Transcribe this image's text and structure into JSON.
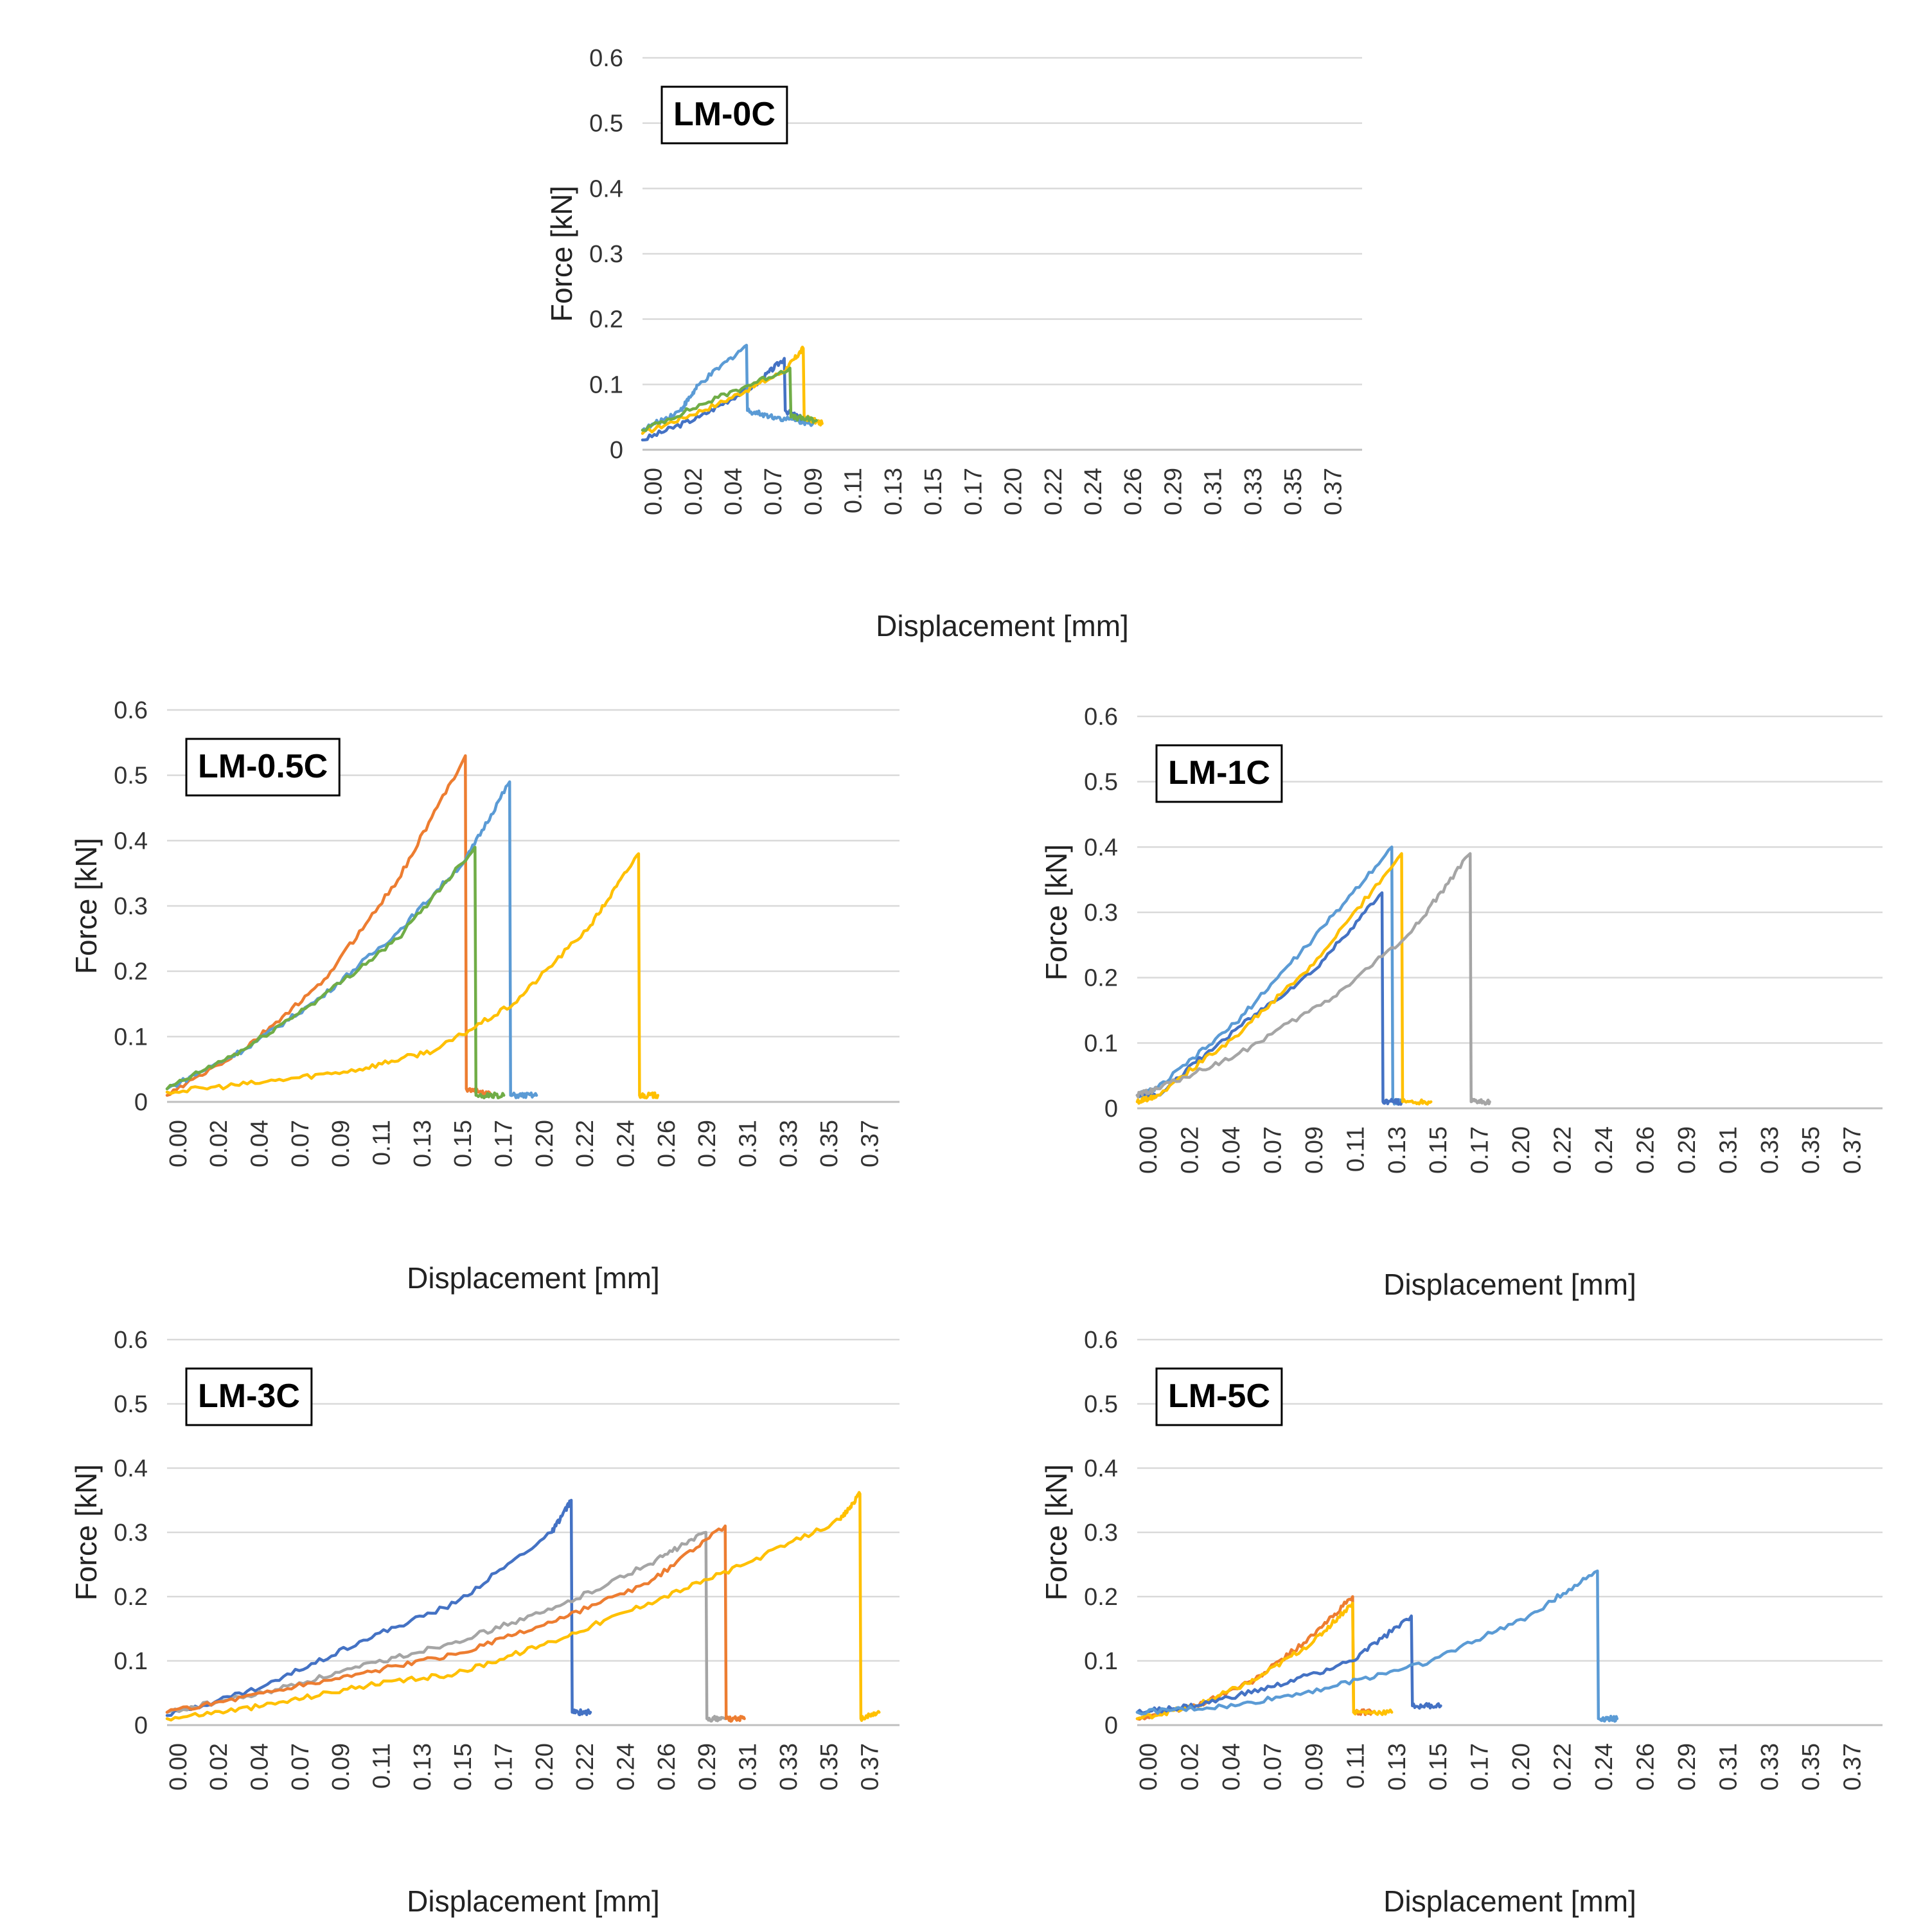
{
  "colors": {
    "blue": "#4472C4",
    "orange": "#ED7D31",
    "gray": "#A5A5A5",
    "yellow": "#FFC000",
    "light_blue": "#5B9BD5",
    "green": "#70AD47"
  },
  "x_tick_labels": [
    "0.00",
    "0.02",
    "0.04",
    "0.07",
    "0.09",
    "0.11",
    "0.13",
    "0.15",
    "0.17",
    "0.20",
    "0.22",
    "0.24",
    "0.26",
    "0.29",
    "0.31",
    "0.33",
    "0.35",
    "0.37"
  ],
  "y_tick_labels": [
    "0",
    "0.1",
    "0.2",
    "0.3",
    "0.4",
    "0.5",
    "0.6"
  ],
  "chart_data": [
    {
      "type": "line",
      "panel": "LM-0C",
      "title": "LM-0C",
      "xlabel": "Displacement [mm]",
      "ylabel": "Force [kN]",
      "xlim": [
        0,
        0.37
      ],
      "ylim": [
        0,
        0.6
      ],
      "grid": true,
      "series": [
        {
          "name": "LM-0C blue",
          "color": "#4472C4",
          "x": [
            0,
            0.03,
            0.06,
            0.075,
            0.0755,
            0.09
          ],
          "y": [
            0.015,
            0.05,
            0.1,
            0.14,
            0.06,
            0.04
          ]
        },
        {
          "name": "LM-0C light blue",
          "color": "#5B9BD5",
          "x": [
            0,
            0.02,
            0.03,
            0.055,
            0.0555,
            0.07,
            0.09
          ],
          "y": [
            0.03,
            0.06,
            0.1,
            0.16,
            0.06,
            0.05,
            0.04
          ]
        },
        {
          "name": "LM-0C yellow",
          "color": "#FFC000",
          "x": [
            0,
            0.04,
            0.075,
            0.085,
            0.0855,
            0.095
          ],
          "y": [
            0.025,
            0.07,
            0.12,
            0.155,
            0.05,
            0.04
          ]
        },
        {
          "name": "LM-0C green",
          "color": "#70AD47",
          "x": [
            0,
            0.04,
            0.078,
            0.0785,
            0.092
          ],
          "y": [
            0.03,
            0.08,
            0.125,
            0.05,
            0.045
          ]
        }
      ]
    },
    {
      "type": "line",
      "panel": "LM-0.5C",
      "title": "LM-0.5C",
      "xlabel": "Displacement [mm]",
      "ylabel": "Force [kN]",
      "xlim": [
        0,
        0.37
      ],
      "ylim": [
        0,
        0.6
      ],
      "grid": true,
      "series": [
        {
          "name": "LM-0.5C orange",
          "color": "#ED7D31",
          "x": [
            0,
            0.04,
            0.08,
            0.12,
            0.155,
            0.1555,
            0.17
          ],
          "y": [
            0.01,
            0.08,
            0.18,
            0.34,
            0.53,
            0.02,
            0.01
          ]
        },
        {
          "name": "LM-0.5C light blue",
          "color": "#5B9BD5",
          "x": [
            0,
            0.04,
            0.08,
            0.12,
            0.155,
            0.178,
            0.1785,
            0.192
          ],
          "y": [
            0.02,
            0.08,
            0.16,
            0.26,
            0.37,
            0.49,
            0.01,
            0.01
          ]
        },
        {
          "name": "LM-0.5C green",
          "color": "#70AD47",
          "x": [
            0,
            0.04,
            0.08,
            0.12,
            0.16,
            0.1605,
            0.175
          ],
          "y": [
            0.02,
            0.08,
            0.16,
            0.25,
            0.39,
            0.01,
            0.01
          ]
        },
        {
          "name": "LM-0.5C yellow",
          "color": "#FFC000",
          "x": [
            0,
            0.05,
            0.1,
            0.14,
            0.18,
            0.22,
            0.245,
            0.2455,
            0.255
          ],
          "y": [
            0.015,
            0.03,
            0.05,
            0.08,
            0.15,
            0.27,
            0.38,
            0.01,
            0.01
          ]
        }
      ]
    },
    {
      "type": "line",
      "panel": "LM-1C",
      "title": "LM-1C",
      "xlabel": "Displacement [mm]",
      "ylabel": "Force [kN]",
      "xlim": [
        0,
        0.37
      ],
      "ylim": [
        0,
        0.6
      ],
      "grid": true,
      "series": [
        {
          "name": "LM-1C light blue",
          "color": "#5B9BD5",
          "x": [
            0,
            0.01,
            0.05,
            0.09,
            0.13,
            0.1305,
            0.135
          ],
          "y": [
            0.02,
            0.03,
            0.13,
            0.26,
            0.4,
            0.01,
            0.01
          ]
        },
        {
          "name": "LM-1C blue",
          "color": "#4472C4",
          "x": [
            0,
            0.01,
            0.05,
            0.09,
            0.125,
            0.1255,
            0.135
          ],
          "y": [
            0.02,
            0.02,
            0.12,
            0.21,
            0.33,
            0.01,
            0.01
          ]
        },
        {
          "name": "LM-1C yellow",
          "color": "#FFC000",
          "x": [
            0,
            0.01,
            0.05,
            0.09,
            0.135,
            0.1355,
            0.15
          ],
          "y": [
            0.01,
            0.02,
            0.11,
            0.22,
            0.39,
            0.01,
            0.01
          ]
        },
        {
          "name": "LM-1C gray",
          "color": "#A5A5A5",
          "x": [
            0,
            0.01,
            0.05,
            0.1,
            0.14,
            0.17,
            0.1705,
            0.18
          ],
          "y": [
            0.02,
            0.03,
            0.08,
            0.17,
            0.27,
            0.39,
            0.01,
            0.01
          ]
        }
      ]
    },
    {
      "type": "line",
      "panel": "LM-3C",
      "title": "LM-3C",
      "xlabel": "Displacement [mm]",
      "ylabel": "Force [kN]",
      "xlim": [
        0,
        0.37
      ],
      "ylim": [
        0,
        0.6
      ],
      "grid": true,
      "series": [
        {
          "name": "LM-3C blue",
          "color": "#4472C4",
          "x": [
            0,
            0.05,
            0.1,
            0.15,
            0.2,
            0.21,
            0.2105,
            0.22
          ],
          "y": [
            0.015,
            0.06,
            0.13,
            0.19,
            0.3,
            0.35,
            0.02,
            0.02
          ]
        },
        {
          "name": "LM-3C gray",
          "color": "#A5A5A5",
          "x": [
            0,
            0.05,
            0.1,
            0.15,
            0.2,
            0.25,
            0.28,
            0.2805,
            0.29
          ],
          "y": [
            0.02,
            0.05,
            0.09,
            0.13,
            0.18,
            0.25,
            0.3,
            0.01,
            0.01
          ]
        },
        {
          "name": "LM-3C orange",
          "color": "#ED7D31",
          "x": [
            0,
            0.05,
            0.1,
            0.15,
            0.2,
            0.25,
            0.29,
            0.2905,
            0.3
          ],
          "y": [
            0.02,
            0.05,
            0.08,
            0.11,
            0.16,
            0.22,
            0.31,
            0.01,
            0.01
          ]
        },
        {
          "name": "LM-3C yellow",
          "color": "#FFC000",
          "x": [
            0,
            0.05,
            0.1,
            0.15,
            0.2,
            0.25,
            0.3,
            0.35,
            0.36,
            0.3605,
            0.37
          ],
          "y": [
            0.01,
            0.03,
            0.06,
            0.08,
            0.13,
            0.19,
            0.25,
            0.32,
            0.36,
            0.01,
            0.02
          ]
        }
      ]
    },
    {
      "type": "line",
      "panel": "LM-5C",
      "title": "LM-5C",
      "xlabel": "Displacement [mm]",
      "ylabel": "Force [kN]",
      "xlim": [
        0,
        0.37
      ],
      "ylim": [
        0,
        0.6
      ],
      "grid": true,
      "series": [
        {
          "name": "LM-5C orange",
          "color": "#ED7D31",
          "x": [
            0,
            0.03,
            0.06,
            0.09,
            0.11,
            0.1105,
            0.12
          ],
          "y": [
            0.01,
            0.03,
            0.07,
            0.14,
            0.2,
            0.02,
            0.02
          ]
        },
        {
          "name": "LM-5C yellow",
          "color": "#FFC000",
          "x": [
            0,
            0.03,
            0.06,
            0.09,
            0.11,
            0.1105,
            0.13
          ],
          "y": [
            0.01,
            0.03,
            0.07,
            0.13,
            0.19,
            0.02,
            0.02
          ]
        },
        {
          "name": "LM-5C blue",
          "color": "#4472C4",
          "x": [
            0,
            0.03,
            0.07,
            0.11,
            0.14,
            0.1405,
            0.155
          ],
          "y": [
            0.02,
            0.03,
            0.06,
            0.1,
            0.17,
            0.03,
            0.03
          ]
        },
        {
          "name": "LM-5C light blue",
          "color": "#5B9BD5",
          "x": [
            0,
            0.05,
            0.1,
            0.15,
            0.2,
            0.235,
            0.2355,
            0.245
          ],
          "y": [
            0.02,
            0.03,
            0.06,
            0.1,
            0.17,
            0.24,
            0.01,
            0.01
          ]
        }
      ]
    }
  ]
}
